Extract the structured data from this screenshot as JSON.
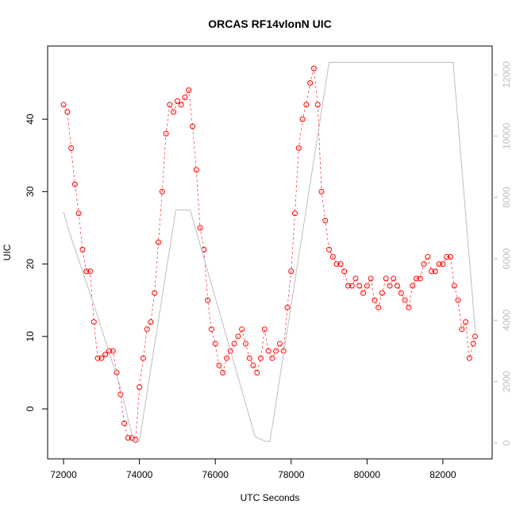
{
  "chart_data": {
    "type": "scatter",
    "title": "ORCAS RF14vlonN UIC",
    "x_label": "UTC Seconds",
    "y_label": "UIC",
    "xlim": [
      71580,
      83300
    ],
    "ylim": [
      -6.9,
      50.1
    ],
    "y2lim": [
      -517,
      12931
    ],
    "xticks": [
      72000,
      74000,
      76000,
      78000,
      80000,
      82000
    ],
    "yticks": [
      0,
      10,
      20,
      30,
      40
    ],
    "y2ticks": [
      0,
      2000,
      4000,
      6000,
      8000,
      10000,
      12000
    ],
    "series": [
      {
        "color": "#ff0000",
        "marker": "circle",
        "x": [
          72000,
          72100,
          72200,
          72300,
          72400,
          72500,
          72600,
          72700,
          72800,
          72900,
          73000,
          73100,
          73200,
          73300,
          73400,
          73500,
          73600,
          73700,
          73800,
          73900,
          74000,
          74100,
          74200,
          74300,
          74400,
          74500,
          74600,
          74700,
          74800,
          74900,
          75000,
          75100,
          75200,
          75300,
          75400,
          75500,
          75600,
          75700,
          75800,
          75900,
          76000,
          76100,
          76200,
          76300,
          76400,
          76500,
          76600,
          76700,
          76800,
          76900,
          77000,
          77100,
          77200,
          77300,
          77400,
          77500,
          77600,
          77700,
          77800,
          77900,
          78000,
          78100,
          78200,
          78300,
          78400,
          78500,
          78600,
          78700,
          78800,
          78900,
          79000,
          79100,
          79200,
          79300,
          79400,
          79500,
          79600,
          79700,
          79800,
          79900,
          80000,
          80100,
          80200,
          80300,
          80400,
          80500,
          80600,
          80700,
          80800,
          80900,
          81000,
          81100,
          81200,
          81300,
          81400,
          81500,
          81600,
          81700,
          81800,
          81900,
          82000,
          82100,
          82200,
          82300,
          82400,
          82500,
          82600,
          82700,
          82800,
          82850
        ],
        "values": [
          42,
          41,
          36,
          31,
          27,
          22,
          19,
          19,
          12,
          7,
          7,
          7.5,
          8,
          8,
          5,
          2,
          -2,
          -4,
          -4,
          -4.3,
          3,
          7,
          11,
          12,
          16,
          23,
          30,
          38,
          42,
          41,
          42.5,
          42,
          43,
          44,
          39,
          33,
          25,
          22,
          15,
          11,
          9,
          6,
          5,
          7,
          8,
          9,
          10,
          11,
          9,
          7,
          6,
          5,
          7,
          11,
          8,
          7,
          8,
          9,
          8,
          14,
          19,
          27,
          36,
          40,
          42,
          45,
          47,
          42,
          30,
          26,
          22,
          21,
          20,
          20,
          19,
          17,
          17,
          18,
          17,
          16,
          17,
          18,
          15,
          14,
          16,
          18,
          17,
          18,
          17,
          16,
          15,
          14,
          17,
          18,
          18,
          20,
          21,
          19,
          19,
          20,
          20,
          21,
          21,
          17,
          15,
          11,
          12,
          7,
          9,
          10
        ]
      },
      {
        "color": "#bebebe",
        "axis": "y2",
        "x": [
          72000,
          72170,
          72800,
          73500,
          73830,
          74000,
          74960,
          75340,
          77050,
          77330,
          77440,
          79000,
          82270,
          82860
        ],
        "values": [
          7525,
          6800,
          4500,
          1800,
          130,
          60,
          7600,
          7580,
          207,
          50,
          50,
          12400,
          12400,
          3570
        ]
      }
    ]
  }
}
